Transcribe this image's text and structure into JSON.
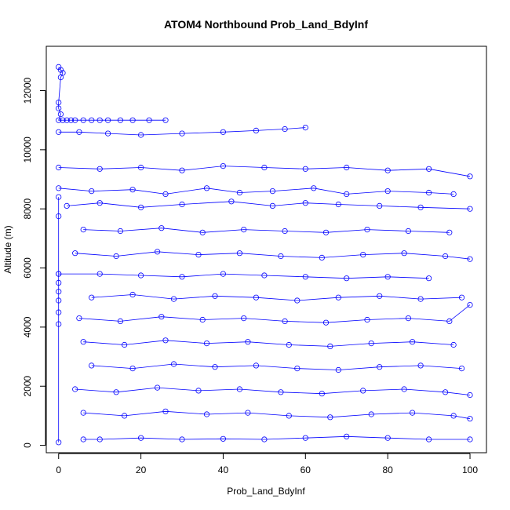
{
  "chart_data": {
    "type": "scatter",
    "title": "ATOM4 Northbound Prob_Land_BdyInf",
    "xlabel": "Prob_Land_BdyInf",
    "ylabel": "Altitude (m)",
    "xlim": [
      -3,
      104
    ],
    "ylim": [
      -250,
      13500
    ],
    "x_ticks": [
      0,
      20,
      40,
      60,
      80,
      100
    ],
    "y_ticks": [
      0,
      2000,
      4000,
      6000,
      8000,
      10000,
      12000
    ],
    "grid": false,
    "legend": "none",
    "point_marker": "open-circle",
    "line_connected": true,
    "color": "#0000ff",
    "series": [
      {
        "x": [
          0,
          0.5,
          1,
          0.5,
          0,
          0,
          0.5,
          0,
          1,
          2,
          3,
          4,
          6,
          8,
          10,
          12,
          15,
          18,
          22,
          26
        ],
        "y": [
          12800,
          12700,
          12600,
          12450,
          11600,
          11400,
          11200,
          11000,
          11000,
          11000,
          11000,
          11000,
          11000,
          11000,
          11000,
          11000,
          11000,
          11000,
          11000,
          11000
        ]
      },
      {
        "x": [
          0,
          5,
          12,
          20,
          30,
          40,
          48,
          55,
          60
        ],
        "y": [
          10600,
          10600,
          10550,
          10500,
          10550,
          10600,
          10650,
          10700,
          10750
        ]
      },
      {
        "x": [
          0,
          10,
          20,
          30,
          40,
          50,
          60,
          70,
          80,
          90,
          100
        ],
        "y": [
          9400,
          9350,
          9400,
          9300,
          9450,
          9400,
          9350,
          9400,
          9300,
          9350,
          9100
        ]
      },
      {
        "x": [
          0,
          8,
          18,
          26,
          36,
          44,
          52,
          62,
          70,
          80,
          90,
          96
        ],
        "y": [
          8700,
          8600,
          8650,
          8500,
          8700,
          8550,
          8600,
          8700,
          8500,
          8600,
          8550,
          8500
        ]
      },
      {
        "x": [
          2,
          10,
          20,
          30,
          42,
          52,
          60,
          68,
          78,
          88,
          100
        ],
        "y": [
          8100,
          8200,
          8050,
          8150,
          8250,
          8100,
          8200,
          8150,
          8100,
          8050,
          8000
        ]
      },
      {
        "x": [
          6,
          15,
          25,
          35,
          45,
          55,
          65,
          75,
          85,
          95
        ],
        "y": [
          7300,
          7250,
          7350,
          7200,
          7300,
          7250,
          7200,
          7300,
          7250,
          7200
        ]
      },
      {
        "x": [
          4,
          14,
          24,
          34,
          44,
          54,
          64,
          74,
          84,
          94,
          100
        ],
        "y": [
          6500,
          6400,
          6550,
          6450,
          6500,
          6400,
          6350,
          6450,
          6500,
          6400,
          6300
        ]
      },
      {
        "x": [
          0,
          10,
          20,
          30,
          40,
          50,
          60,
          70,
          80,
          90
        ],
        "y": [
          5800,
          5800,
          5750,
          5700,
          5800,
          5750,
          5700,
          5650,
          5700,
          5650
        ]
      },
      {
        "x": [
          8,
          18,
          28,
          38,
          48,
          58,
          68,
          78,
          88,
          98
        ],
        "y": [
          5000,
          5100,
          4950,
          5050,
          5000,
          4900,
          5000,
          5050,
          4950,
          5000
        ]
      },
      {
        "x": [
          5,
          15,
          25,
          35,
          45,
          55,
          65,
          75,
          85,
          95,
          100
        ],
        "y": [
          4300,
          4200,
          4350,
          4250,
          4300,
          4200,
          4150,
          4250,
          4300,
          4200,
          4750
        ]
      },
      {
        "x": [
          6,
          16,
          26,
          36,
          46,
          56,
          66,
          76,
          86,
          96
        ],
        "y": [
          3500,
          3400,
          3550,
          3450,
          3500,
          3400,
          3350,
          3450,
          3500,
          3400
        ]
      },
      {
        "x": [
          8,
          18,
          28,
          38,
          48,
          58,
          68,
          78,
          88,
          98
        ],
        "y": [
          2700,
          2600,
          2750,
          2650,
          2700,
          2600,
          2550,
          2650,
          2700,
          2600
        ]
      },
      {
        "x": [
          4,
          14,
          24,
          34,
          44,
          54,
          64,
          74,
          84,
          94,
          100
        ],
        "y": [
          1900,
          1800,
          1950,
          1850,
          1900,
          1800,
          1750,
          1850,
          1900,
          1800,
          1700
        ]
      },
      {
        "x": [
          6,
          16,
          26,
          36,
          46,
          56,
          66,
          76,
          86,
          96,
          100
        ],
        "y": [
          1100,
          1000,
          1150,
          1050,
          1100,
          1000,
          950,
          1050,
          1100,
          1000,
          900
        ]
      },
      {
        "x": [
          6,
          10,
          20,
          30,
          40,
          50,
          60,
          70,
          80,
          90,
          100
        ],
        "y": [
          200,
          200,
          250,
          200,
          220,
          200,
          250,
          300,
          250,
          200,
          200
        ]
      },
      {
        "x": [
          0,
          0,
          0,
          0,
          0,
          0,
          0,
          0,
          0
        ],
        "y": [
          100,
          4100,
          4500,
          4900,
          5200,
          5500,
          5800,
          7750,
          8400
        ]
      }
    ]
  }
}
